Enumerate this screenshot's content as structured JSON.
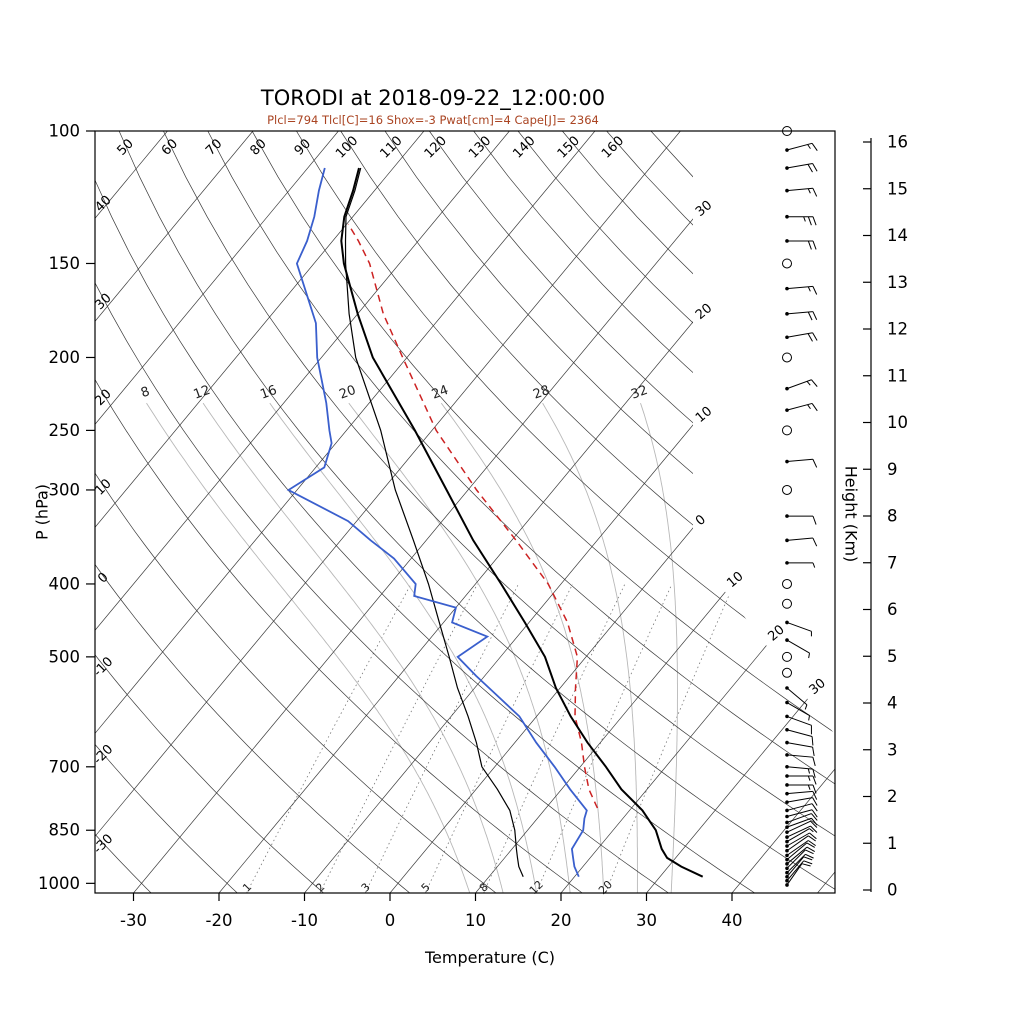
{
  "header": {
    "title": "TORODI at 2018-09-22_12:00:00",
    "subtitle": "Plcl=794 Tlcl[C]=16 Shox=-3 Pwat[cm]=4 Cape[J]= 2364",
    "subtitle_color": "#aa4422"
  },
  "axes": {
    "pressure_label": "P (hPa)",
    "temperature_label": "Temperature (C)",
    "height_label": "Height (Km)",
    "pressure_ticks": [
      100,
      150,
      200,
      250,
      300,
      400,
      500,
      700,
      850,
      1000
    ],
    "temperature_ticks": [
      -30,
      -20,
      -10,
      0,
      10,
      20,
      30,
      40
    ],
    "height_ticks_km": [
      0,
      1,
      2,
      3,
      4,
      5,
      6,
      7,
      8,
      9,
      10,
      11,
      12,
      13,
      14,
      15,
      16
    ]
  },
  "chart_data": {
    "type": "skewt_log_p_sounding",
    "station": "TORODI",
    "datetime": "2018-09-22_12:00:00",
    "indices": {
      "Plcl": 794,
      "Tlcl_C": 16,
      "Shox": -3,
      "Pwat_cm": 4,
      "Cape_J": 2364
    },
    "pressure_range_hPa": [
      100,
      1030
    ],
    "background": {
      "isotherm_edge_labels": [
        {
          "value": -30,
          "label": "30"
        },
        {
          "value": -20,
          "label": "20"
        },
        {
          "value": -10,
          "label": "10"
        },
        {
          "value": 0,
          "label": "0"
        },
        {
          "value": 10,
          "label": "10"
        },
        {
          "value": 20,
          "label": "20"
        },
        {
          "value": 30,
          "label": "30"
        }
      ],
      "dry_adiabat_top_labels": [
        50,
        60,
        70,
        80,
        90,
        100,
        110,
        120,
        130,
        140,
        150,
        160
      ],
      "dry_adiabat_left_labels": [
        40,
        30,
        20,
        10,
        0,
        -10,
        -20,
        -30
      ],
      "moist_adiabat_labels": [
        8,
        12,
        16,
        20,
        24,
        28,
        32
      ],
      "mixing_ratio_labels": [
        1,
        2,
        3,
        5,
        8,
        12,
        20
      ]
    },
    "series": {
      "temperature": {
        "color": "#000000",
        "width": 2,
        "points": [
          [
            980,
            35
          ],
          [
            950,
            31.5
          ],
          [
            925,
            29
          ],
          [
            900,
            27.5
          ],
          [
            850,
            25
          ],
          [
            800,
            21.5
          ],
          [
            750,
            17
          ],
          [
            700,
            13
          ],
          [
            650,
            8.5
          ],
          [
            600,
            4
          ],
          [
            550,
            -0.5
          ],
          [
            500,
            -4.8
          ],
          [
            450,
            -10.5
          ],
          [
            400,
            -17
          ],
          [
            350,
            -24.5
          ],
          [
            300,
            -32.5
          ],
          [
            250,
            -42
          ],
          [
            200,
            -54
          ],
          [
            175,
            -60
          ],
          [
            150,
            -66.5
          ],
          [
            140,
            -69
          ],
          [
            130,
            -71
          ],
          [
            120,
            -72.5
          ],
          [
            112,
            -74
          ]
        ]
      },
      "secondary": {
        "color": "#000000",
        "width": 1.2,
        "points": [
          [
            980,
            14
          ],
          [
            950,
            12.5
          ],
          [
            925,
            11.5
          ],
          [
            900,
            10.5
          ],
          [
            850,
            8.5
          ],
          [
            800,
            6
          ],
          [
            750,
            2.5
          ],
          [
            700,
            -1.5
          ],
          [
            650,
            -4.5
          ],
          [
            600,
            -8
          ],
          [
            550,
            -12
          ],
          [
            500,
            -16
          ],
          [
            450,
            -20.5
          ],
          [
            400,
            -25.5
          ],
          [
            350,
            -31.5
          ],
          [
            300,
            -38.5
          ],
          [
            250,
            -46
          ],
          [
            200,
            -56
          ],
          [
            175,
            -61
          ],
          [
            150,
            -66.3
          ],
          [
            140,
            -68.5
          ],
          [
            130,
            -70.8
          ],
          [
            120,
            -72.3
          ],
          [
            112,
            -73.8
          ]
        ]
      },
      "dewpoint": {
        "color": "#3a5fcd",
        "width": 1.8,
        "points": [
          [
            980,
            20.5
          ],
          [
            950,
            19
          ],
          [
            925,
            18
          ],
          [
            900,
            17
          ],
          [
            850,
            16.5
          ],
          [
            820,
            15.5
          ],
          [
            800,
            15
          ],
          [
            750,
            11
          ],
          [
            700,
            7
          ],
          [
            650,
            2.5
          ],
          [
            600,
            -2
          ],
          [
            560,
            -7
          ],
          [
            530,
            -11
          ],
          [
            500,
            -15
          ],
          [
            470,
            -13.5
          ],
          [
            450,
            -19
          ],
          [
            430,
            -20
          ],
          [
            415,
            -26
          ],
          [
            400,
            -27
          ],
          [
            370,
            -32
          ],
          [
            350,
            -36.5
          ],
          [
            330,
            -41
          ],
          [
            300,
            -51
          ],
          [
            280,
            -49
          ],
          [
            260,
            -50.5
          ],
          [
            250,
            -52
          ],
          [
            230,
            -55
          ],
          [
            200,
            -60.5
          ],
          [
            180,
            -64
          ],
          [
            150,
            -72
          ],
          [
            140,
            -73
          ],
          [
            130,
            -74.5
          ],
          [
            120,
            -76.5
          ],
          [
            112,
            -78
          ]
        ]
      },
      "parcel": {
        "color": "#cc2222",
        "width": 1.5,
        "dash": "7 5",
        "points": [
          [
            794,
            16
          ],
          [
            750,
            13.2
          ],
          [
            700,
            10.5
          ],
          [
            650,
            7.8
          ],
          [
            600,
            4.5
          ],
          [
            550,
            1.8
          ],
          [
            500,
            -1
          ],
          [
            450,
            -5.5
          ],
          [
            400,
            -11.5
          ],
          [
            350,
            -19.5
          ],
          [
            300,
            -29
          ],
          [
            250,
            -39.5
          ],
          [
            200,
            -50.5
          ],
          [
            175,
            -57
          ],
          [
            150,
            -63.5
          ],
          [
            140,
            -67
          ],
          [
            133,
            -69.8
          ]
        ]
      }
    },
    "wind_barbs": {
      "order": [
        "pressure_hPa",
        "dir_deg_from",
        "speed_kt (0 = calm circle)"
      ],
      "levels": [
        [
          1005,
          35,
          10
        ],
        [
          992,
          40,
          10
        ],
        [
          980,
          40,
          10
        ],
        [
          968,
          45,
          10
        ],
        [
          955,
          45,
          10
        ],
        [
          942,
          50,
          10
        ],
        [
          930,
          50,
          10
        ],
        [
          918,
          55,
          10
        ],
        [
          905,
          55,
          10
        ],
        [
          892,
          60,
          10
        ],
        [
          880,
          60,
          5
        ],
        [
          868,
          65,
          10
        ],
        [
          855,
          65,
          10
        ],
        [
          842,
          70,
          10
        ],
        [
          830,
          70,
          10
        ],
        [
          815,
          75,
          10
        ],
        [
          800,
          75,
          10
        ],
        [
          780,
          80,
          10
        ],
        [
          760,
          85,
          10
        ],
        [
          740,
          90,
          15
        ],
        [
          720,
          90,
          15
        ],
        [
          700,
          95,
          15
        ],
        [
          675,
          95,
          10
        ],
        [
          650,
          100,
          10
        ],
        [
          625,
          105,
          10
        ],
        [
          600,
          110,
          10
        ],
        [
          575,
          120,
          5
        ],
        [
          550,
          130,
          5
        ],
        [
          525,
          0,
          0
        ],
        [
          500,
          0,
          0
        ],
        [
          475,
          120,
          5
        ],
        [
          450,
          110,
          5
        ],
        [
          425,
          0,
          0
        ],
        [
          400,
          0,
          0
        ],
        [
          375,
          90,
          5
        ],
        [
          350,
          85,
          10
        ],
        [
          325,
          90,
          10
        ],
        [
          300,
          0,
          0
        ],
        [
          275,
          85,
          10
        ],
        [
          250,
          0,
          0
        ],
        [
          235,
          75,
          15
        ],
        [
          220,
          70,
          15
        ],
        [
          200,
          0,
          0
        ],
        [
          188,
          80,
          20
        ],
        [
          175,
          85,
          20
        ],
        [
          162,
          85,
          15
        ],
        [
          150,
          0,
          0
        ],
        [
          140,
          90,
          20
        ],
        [
          130,
          90,
          25
        ],
        [
          120,
          85,
          15
        ],
        [
          112,
          80,
          20
        ],
        [
          106,
          75,
          15
        ],
        [
          100,
          0,
          0
        ]
      ]
    }
  }
}
